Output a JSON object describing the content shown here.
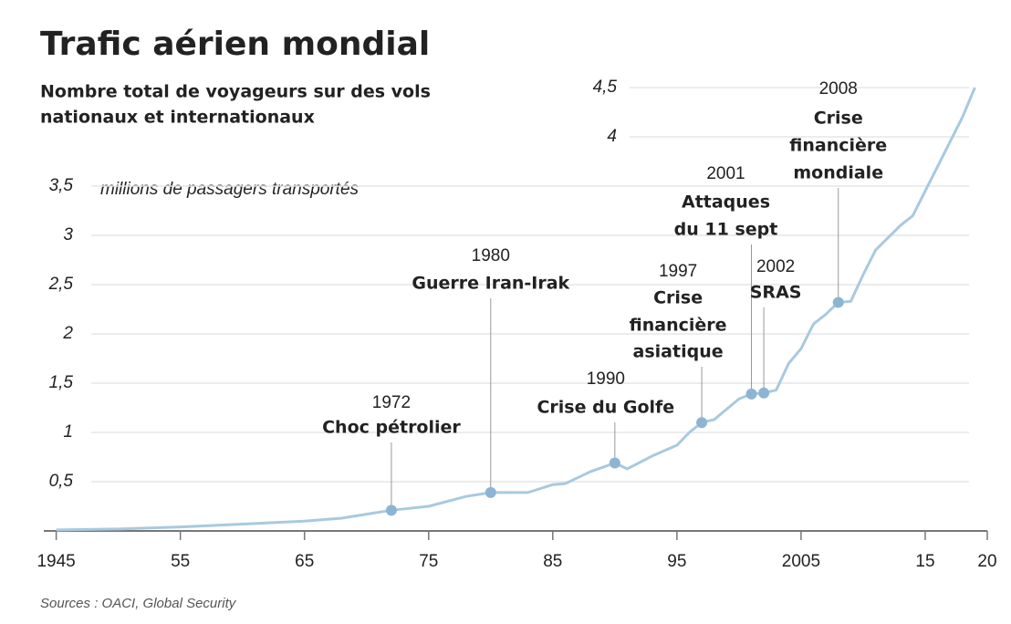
{
  "chart_data": {
    "type": "line",
    "title": "Trafic aérien mondial",
    "subtitle": [
      "Nombre total de voyageurs sur des vols",
      "nationaux et internationaux"
    ],
    "y_label": "millions de passagers transportés",
    "source": "Sources : OACI, Global Security",
    "x": [
      1945,
      1950,
      1955,
      1960,
      1965,
      1968,
      1970,
      1972,
      1975,
      1978,
      1980,
      1983,
      1985,
      1986,
      1988,
      1990,
      1991,
      1993,
      1995,
      1996,
      1997,
      1998,
      2000,
      2001,
      2002,
      2003,
      2004,
      2005,
      2006,
      2007,
      2008,
      2009,
      2010,
      2011,
      2013,
      2014,
      2016,
      2017,
      2018,
      2019
    ],
    "series": [
      {
        "name": "Passagers",
        "color": "#a9c9df",
        "values": [
          0.01,
          0.02,
          0.04,
          0.07,
          0.1,
          0.13,
          0.17,
          0.21,
          0.25,
          0.35,
          0.39,
          0.39,
          0.47,
          0.48,
          0.6,
          0.69,
          0.63,
          0.76,
          0.87,
          1.0,
          1.1,
          1.13,
          1.34,
          1.39,
          1.4,
          1.43,
          1.7,
          1.85,
          2.1,
          2.2,
          2.32,
          2.33,
          2.6,
          2.85,
          3.1,
          3.2,
          3.7,
          3.95,
          4.2,
          4.5
        ]
      }
    ],
    "xlim": [
      1944,
      2020
    ],
    "xticks": [
      {
        "value": 1945,
        "label": "1945"
      },
      {
        "value": 1955,
        "label": "55"
      },
      {
        "value": 1965,
        "label": "65"
      },
      {
        "value": 1975,
        "label": "75"
      },
      {
        "value": 1985,
        "label": "85"
      },
      {
        "value": 1995,
        "label": "95"
      },
      {
        "value": 2005,
        "label": "2005"
      },
      {
        "value": 2015,
        "label": "15"
      },
      {
        "value": 2020,
        "label": "20"
      }
    ],
    "ylim": [
      0,
      4.5
    ],
    "yticks": [
      {
        "value": 0.5,
        "label": "0,5"
      },
      1,
      {
        "value": 1.5,
        "label": "1,5"
      },
      2,
      {
        "value": 2.5,
        "label": "2,5"
      },
      3,
      {
        "value": 3.5,
        "label": "3,5"
      },
      4,
      {
        "value": 4.5,
        "label": "4,5"
      }
    ],
    "grid": true,
    "annotations": [
      {
        "year": 1972,
        "text": [
          "Choc pétrolier"
        ]
      },
      {
        "year": 1980,
        "text": [
          "Guerre Iran-Irak"
        ]
      },
      {
        "year": 1990,
        "text": [
          "Crise du Golfe"
        ]
      },
      {
        "year": 1997,
        "text": [
          "Crise",
          "financière",
          "asiatique"
        ]
      },
      {
        "year": 2001,
        "text": [
          "Attaques",
          "du 11 sept"
        ]
      },
      {
        "year": 2002,
        "text": [
          "SRAS"
        ]
      },
      {
        "year": 2008,
        "text": [
          "Crise",
          "financière",
          "mondiale"
        ]
      }
    ]
  }
}
